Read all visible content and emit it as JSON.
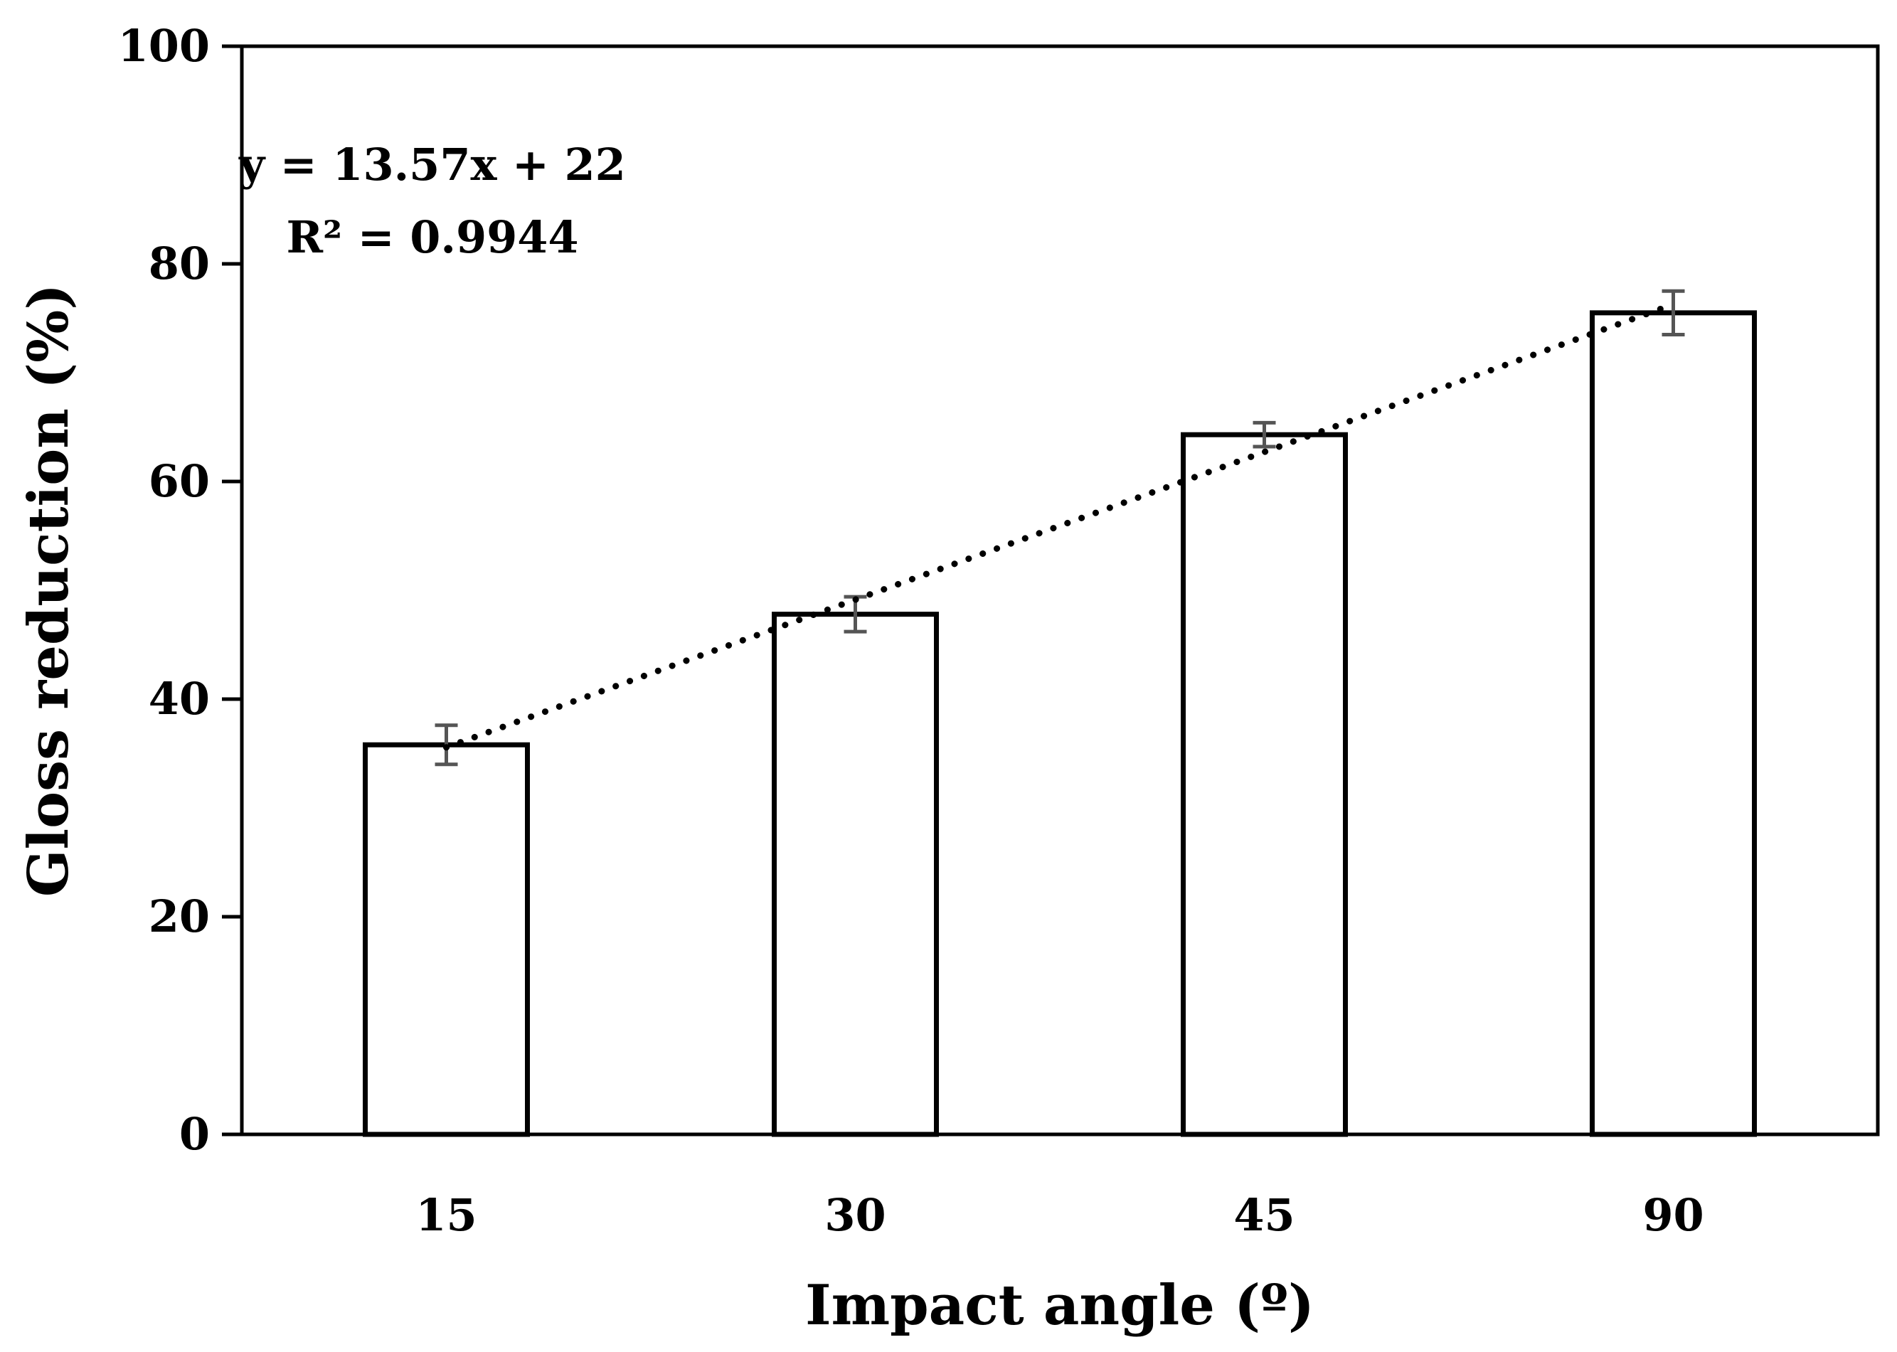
{
  "chart_data": {
    "type": "bar",
    "title": "",
    "xlabel": "Impact angle (º)",
    "ylabel": "Gloss reduction (%)",
    "categories": [
      "15",
      "30",
      "45",
      "90"
    ],
    "series": [
      {
        "name": "Gloss reduction",
        "values": [
          35.8,
          47.8,
          64.3,
          75.5
        ],
        "error": [
          1.8,
          1.6,
          1.1,
          2.0
        ]
      }
    ],
    "trendline": {
      "type": "linear",
      "style": "dotted",
      "slope": 13.57,
      "intercept": 22,
      "equation_label": "y = 13.57x + 22",
      "r2_label": "R² = 0.9944"
    },
    "ylim": [
      0,
      100
    ],
    "yticks": [
      "0",
      "20",
      "40",
      "60",
      "80",
      "100"
    ],
    "grid": false,
    "legend": "none",
    "colors": {
      "bar_fill": "#ffffff",
      "bar_stroke": "#000000",
      "error_bar": "#555555",
      "trendline": "#000000",
      "axis": "#000000"
    }
  }
}
